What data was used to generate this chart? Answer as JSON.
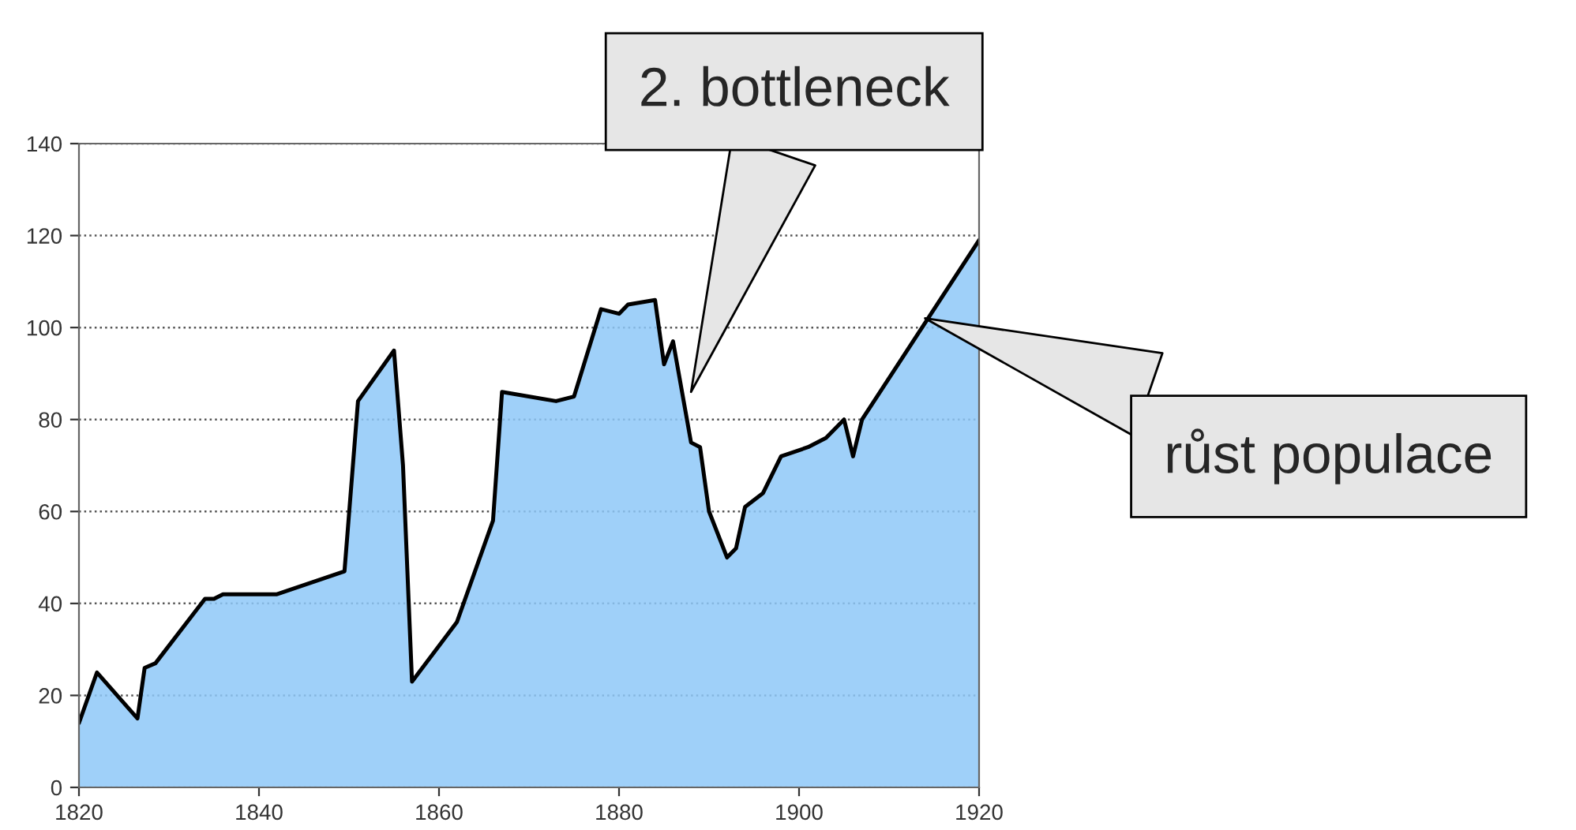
{
  "chart_data": {
    "type": "area",
    "x": [
      1820,
      1822,
      1826.5,
      1827.3,
      1828.5,
      1834,
      1835,
      1836,
      1842,
      1849.5,
      1851,
      1855,
      1856,
      1857,
      1862,
      1866,
      1867,
      1873,
      1875,
      1878,
      1880,
      1881,
      1884,
      1885,
      1886,
      1888,
      1889,
      1890,
      1892,
      1893,
      1894,
      1896,
      1898,
      1901,
      1903,
      1905,
      1906,
      1907,
      1920
    ],
    "series": [
      {
        "color": "#8ec8f8",
        "values": [
          14,
          25,
          15,
          26,
          27,
          41,
          41,
          42,
          42,
          47,
          84,
          95,
          70,
          23,
          36,
          58,
          86,
          84,
          85,
          104,
          103,
          105,
          106,
          92,
          97,
          75,
          74,
          60,
          50,
          52,
          61,
          64,
          72,
          74,
          76,
          80,
          72,
          80,
          119
        ]
      }
    ],
    "xlim": [
      1820,
      1920
    ],
    "xticks": [
      1820,
      1840,
      1860,
      1880,
      1900,
      1920
    ],
    "ylim": [
      0,
      140
    ],
    "yticks": [
      0,
      20,
      40,
      60,
      80,
      100,
      120,
      140
    ],
    "grid": "y",
    "annotations": [
      {
        "text": "2. bottleneck",
        "x": 1888,
        "y": 86
      },
      {
        "text": "růst populace",
        "x": 1914,
        "y": 102
      }
    ]
  }
}
